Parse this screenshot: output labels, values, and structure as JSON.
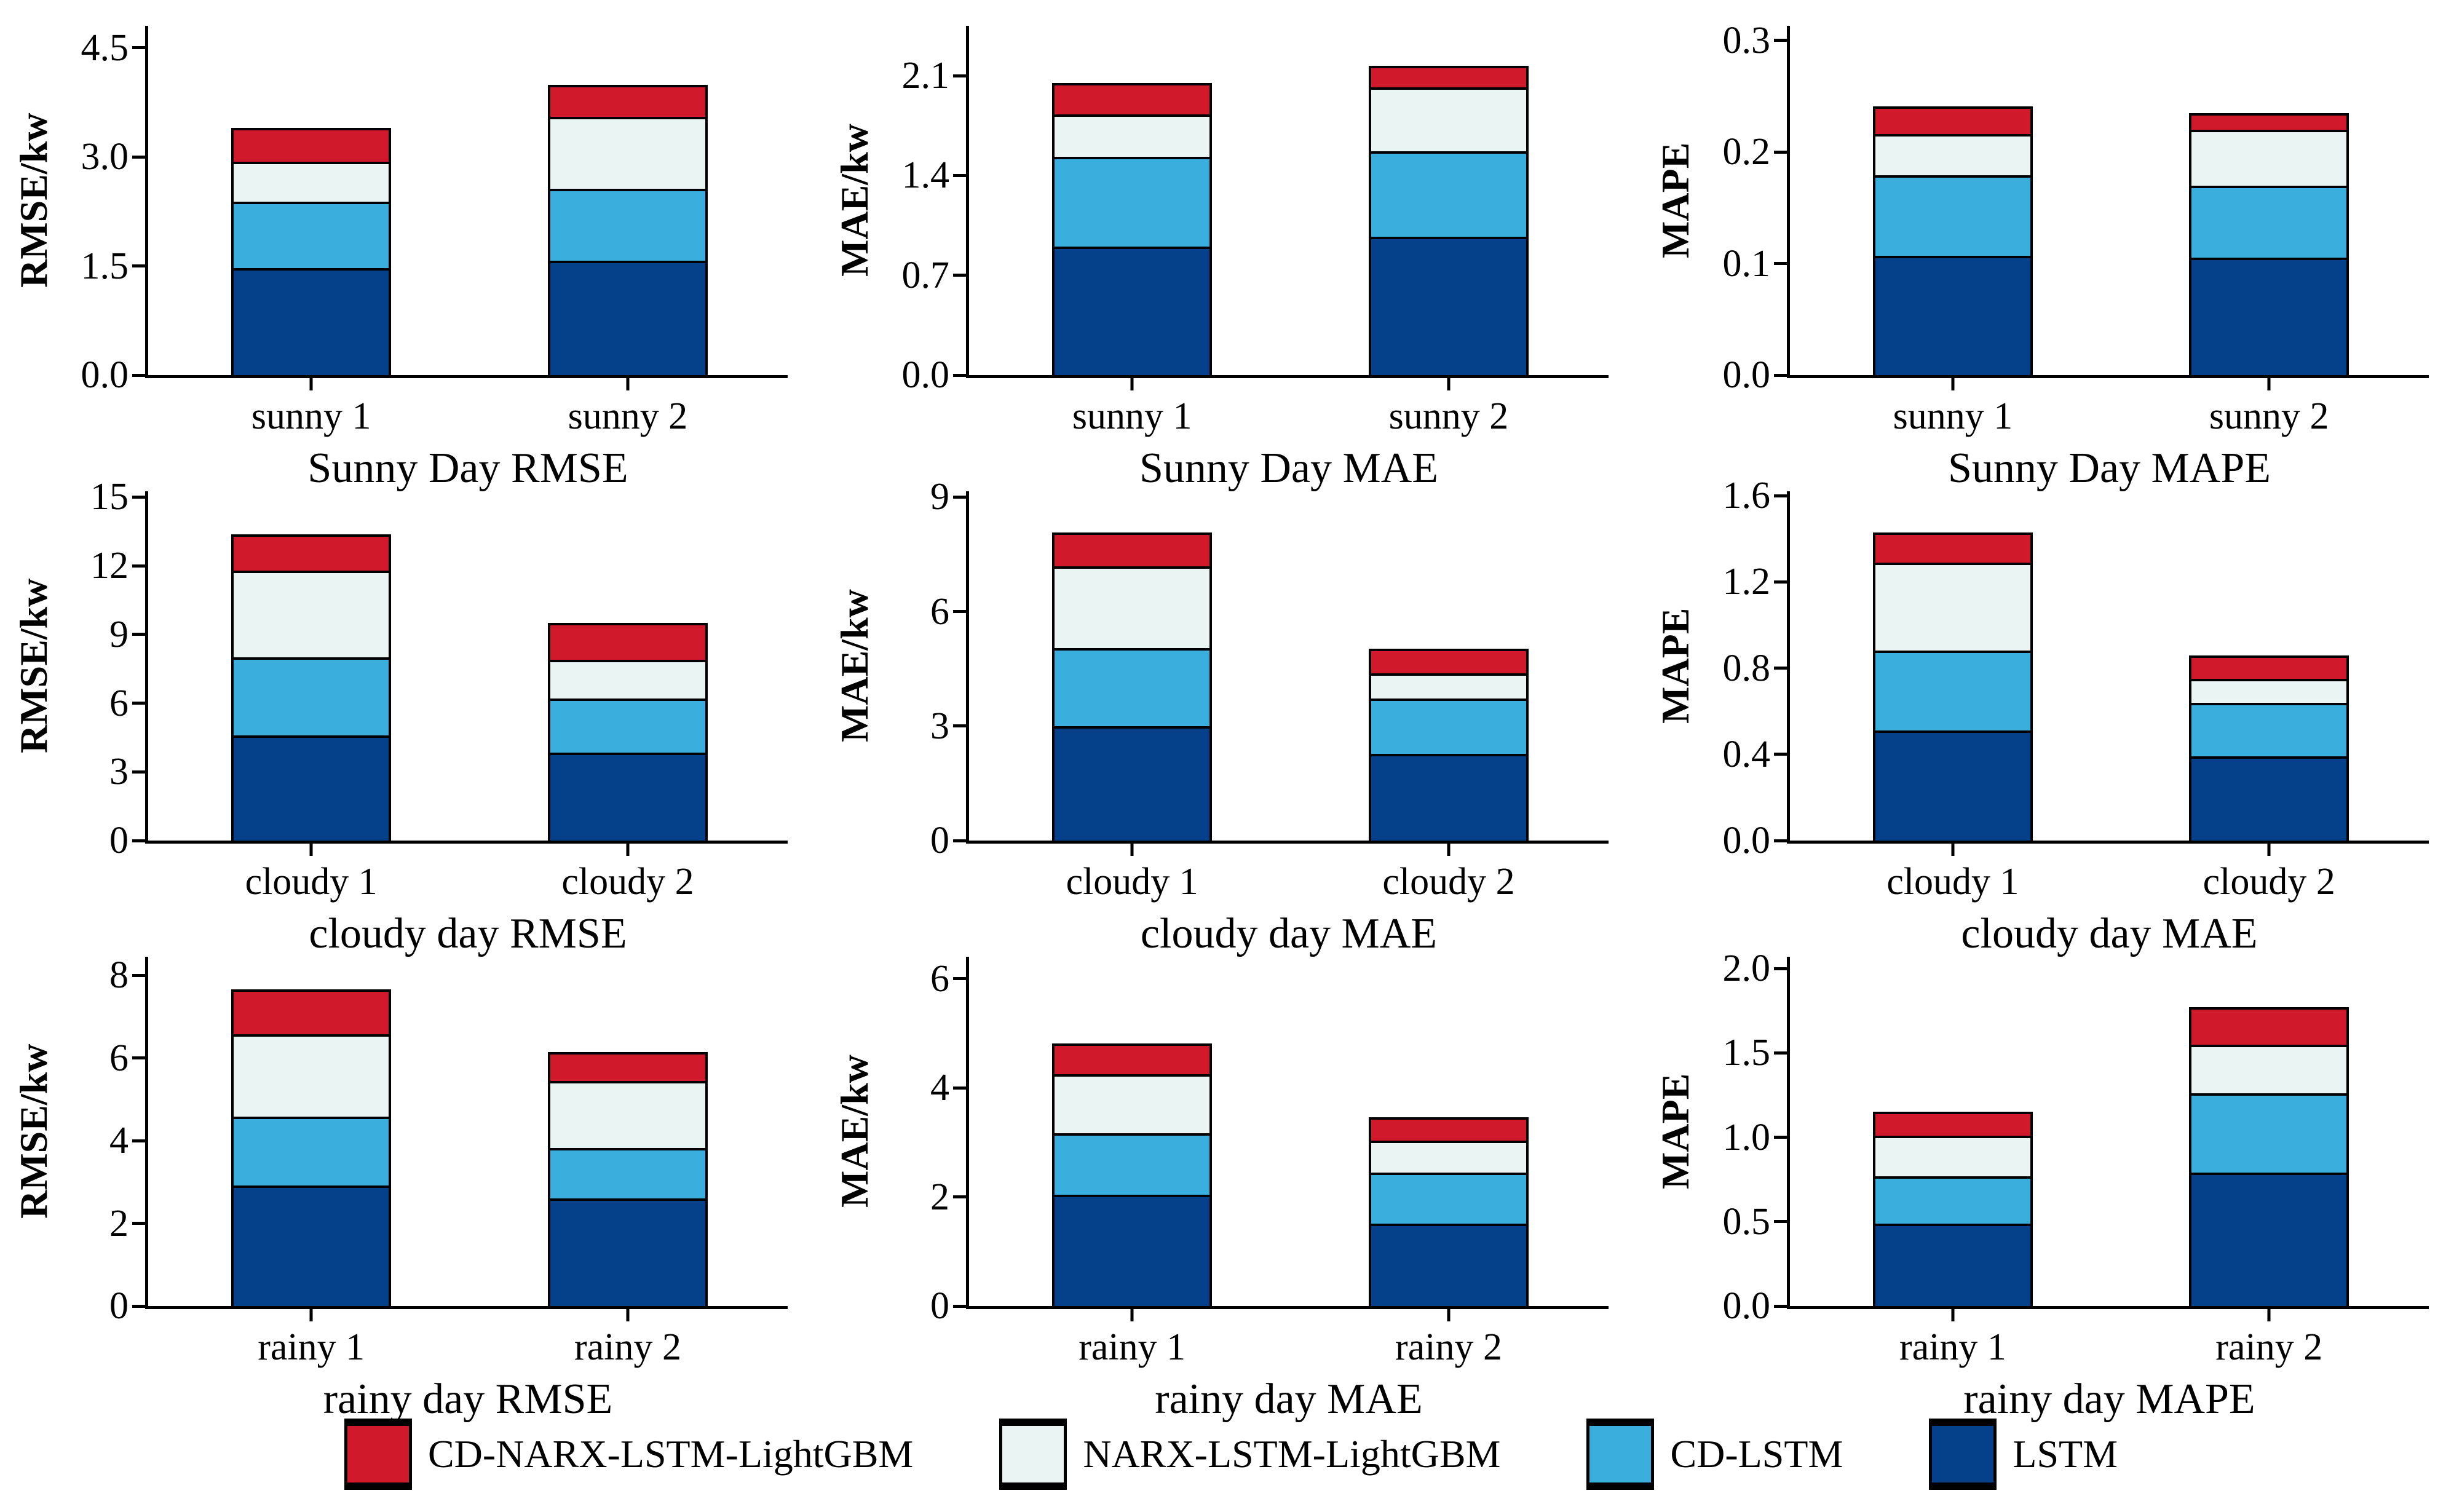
{
  "page": {
    "background": "#ffffff"
  },
  "colors": {
    "cd_narx_lstm_lightgbm": "#D01A2C",
    "narx_lstm_lightgbm": "#EAF4F3",
    "cd_lstm": "#3AAEDC",
    "lstm": "#05418A",
    "axis": "#000000"
  },
  "legend": {
    "items": [
      {
        "label": "CD-NARX-LSTM-LightGBM",
        "color": "#D01A2C",
        "swatch": "red-swatch"
      },
      {
        "label": "NARX-LSTM-LightGBM",
        "color": "#EAF4F3",
        "swatch": "pale-swatch"
      },
      {
        "label": "CD-LSTM",
        "color": "#3AAEDC",
        "swatch": "lightblue-swatch"
      },
      {
        "label": "LSTM",
        "color": "#05418A",
        "swatch": "navy-swatch"
      }
    ]
  },
  "chart_data": [
    {
      "type": "bar",
      "stacked": true,
      "title": "Sunny Day RMSE",
      "ylabel": "RMSE/kw",
      "categories": [
        "sunny 1",
        "sunny 2"
      ],
      "yticks": [
        "0.0",
        "1.5",
        "3.0",
        "4.5"
      ],
      "ytick_values": [
        0,
        1.5,
        3,
        4.5
      ],
      "ylim": [
        0,
        4.8
      ],
      "grid": false,
      "legend_position": "figure-bottom",
      "series": [
        {
          "name": "LSTM",
          "color": "#05418A",
          "values": [
            1.47,
            1.57
          ]
        },
        {
          "name": "CD-LSTM",
          "color": "#3AAEDC",
          "values": [
            0.91,
            0.99
          ]
        },
        {
          "name": "NARX-LSTM-LightGBM",
          "color": "#EAF4F3",
          "values": [
            0.55,
            0.99
          ]
        },
        {
          "name": "CD-NARX-LSTM-LightGBM",
          "color": "#D01A2C",
          "values": [
            0.47,
            0.44
          ]
        }
      ]
    },
    {
      "type": "bar",
      "stacked": true,
      "title": "Sunny Day MAE",
      "ylabel": "MAE/kw",
      "categories": [
        "sunny 1",
        "sunny 2"
      ],
      "yticks": [
        "0.0",
        "0.7",
        "1.4",
        "2.1"
      ],
      "ytick_values": [
        0,
        0.7,
        1.4,
        2.1
      ],
      "ylim": [
        0,
        2.45
      ],
      "grid": false,
      "legend_position": "figure-bottom",
      "series": [
        {
          "name": "LSTM",
          "color": "#05418A",
          "values": [
            0.9,
            0.97
          ]
        },
        {
          "name": "CD-LSTM",
          "color": "#3AAEDC",
          "values": [
            0.63,
            0.6
          ]
        },
        {
          "name": "NARX-LSTM-LightGBM",
          "color": "#EAF4F3",
          "values": [
            0.3,
            0.45
          ]
        },
        {
          "name": "CD-NARX-LSTM-LightGBM",
          "color": "#D01A2C",
          "values": [
            0.22,
            0.15
          ]
        }
      ]
    },
    {
      "type": "bar",
      "stacked": true,
      "title": "Sunny Day MAPE",
      "ylabel": "MAPE",
      "categories": [
        "sunny 1",
        "sunny 2"
      ],
      "yticks": [
        "0.0",
        "0.1",
        "0.2",
        "0.3"
      ],
      "ytick_values": [
        0,
        0.1,
        0.2,
        0.3
      ],
      "ylim": [
        0,
        0.313
      ],
      "grid": false,
      "legend_position": "figure-bottom",
      "series": [
        {
          "name": "LSTM",
          "color": "#05418A",
          "values": [
            0.107,
            0.105
          ]
        },
        {
          "name": "CD-LSTM",
          "color": "#3AAEDC",
          "values": [
            0.072,
            0.065
          ]
        },
        {
          "name": "NARX-LSTM-LightGBM",
          "color": "#EAF4F3",
          "values": [
            0.037,
            0.05
          ]
        },
        {
          "name": "CD-NARX-LSTM-LightGBM",
          "color": "#D01A2C",
          "values": [
            0.025,
            0.015
          ]
        }
      ]
    },
    {
      "type": "bar",
      "stacked": true,
      "title": "cloudy day RMSE",
      "ylabel": "RMSE/kw",
      "categories": [
        "cloudy 1",
        "cloudy 2"
      ],
      "yticks": [
        "0",
        "3",
        "6",
        "9",
        "12",
        "15"
      ],
      "ytick_values": [
        0,
        3,
        6,
        9,
        12,
        15
      ],
      "ylim": [
        0,
        15.25
      ],
      "grid": false,
      "legend_position": "figure-bottom",
      "series": [
        {
          "name": "LSTM",
          "color": "#05418A",
          "values": [
            4.6,
            3.85
          ]
        },
        {
          "name": "CD-LSTM",
          "color": "#3AAEDC",
          "values": [
            3.4,
            2.35
          ]
        },
        {
          "name": "NARX-LSTM-LightGBM",
          "color": "#EAF4F3",
          "values": [
            3.78,
            1.7
          ]
        },
        {
          "name": "CD-NARX-LSTM-LightGBM",
          "color": "#D01A2C",
          "values": [
            1.6,
            1.6
          ]
        }
      ]
    },
    {
      "type": "bar",
      "stacked": true,
      "title": "cloudy day MAE",
      "ylabel": "MAE/kw",
      "categories": [
        "cloudy 1",
        "cloudy 2"
      ],
      "yticks": [
        "0",
        "3",
        "6",
        "9"
      ],
      "ytick_values": [
        0,
        3,
        6,
        9
      ],
      "ylim": [
        0,
        9.15
      ],
      "grid": false,
      "legend_position": "figure-bottom",
      "series": [
        {
          "name": "LSTM",
          "color": "#05418A",
          "values": [
            3.0,
            2.27
          ]
        },
        {
          "name": "CD-LSTM",
          "color": "#3AAEDC",
          "values": [
            2.05,
            1.45
          ]
        },
        {
          "name": "NARX-LSTM-LightGBM",
          "color": "#EAF4F3",
          "values": [
            2.13,
            0.67
          ]
        },
        {
          "name": "CD-NARX-LSTM-LightGBM",
          "color": "#D01A2C",
          "values": [
            0.89,
            0.64
          ]
        }
      ]
    },
    {
      "type": "bar",
      "stacked": true,
      "title": "cloudy day MAE",
      "ylabel": "MAPE",
      "categories": [
        "cloudy 1",
        "cloudy 2"
      ],
      "yticks": [
        "0.0",
        "0.4",
        "0.8",
        "1.2",
        "1.6"
      ],
      "ytick_values": [
        0,
        0.4,
        0.8,
        1.2,
        1.6
      ],
      "ylim": [
        0,
        1.62
      ],
      "grid": false,
      "legend_position": "figure-bottom",
      "series": [
        {
          "name": "LSTM",
          "color": "#05418A",
          "values": [
            0.51,
            0.39
          ]
        },
        {
          "name": "CD-LSTM",
          "color": "#3AAEDC",
          "values": [
            0.37,
            0.25
          ]
        },
        {
          "name": "NARX-LSTM-LightGBM",
          "color": "#EAF4F3",
          "values": [
            0.41,
            0.11
          ]
        },
        {
          "name": "CD-NARX-LSTM-LightGBM",
          "color": "#D01A2C",
          "values": [
            0.14,
            0.11
          ]
        }
      ]
    },
    {
      "type": "bar",
      "stacked": true,
      "title": "rainy day RMSE",
      "ylabel": "RMSE/kw",
      "categories": [
        "rainy 1",
        "rainy 2"
      ],
      "yticks": [
        "0",
        "2",
        "4",
        "6",
        "8"
      ],
      "ytick_values": [
        0,
        2,
        4,
        6,
        8
      ],
      "ylim": [
        0,
        8.45
      ],
      "grid": false,
      "legend_position": "figure-bottom",
      "series": [
        {
          "name": "LSTM",
          "color": "#05418A",
          "values": [
            2.92,
            2.61
          ]
        },
        {
          "name": "CD-LSTM",
          "color": "#3AAEDC",
          "values": [
            1.66,
            1.21
          ]
        },
        {
          "name": "NARX-LSTM-LightGBM",
          "color": "#EAF4F3",
          "values": [
            2.0,
            1.63
          ]
        },
        {
          "name": "CD-NARX-LSTM-LightGBM",
          "color": "#D01A2C",
          "values": [
            1.08,
            0.7
          ]
        }
      ]
    },
    {
      "type": "bar",
      "stacked": true,
      "title": "rainy day MAE",
      "ylabel": "MAE/kw",
      "categories": [
        "rainy 1",
        "rainy 2"
      ],
      "yticks": [
        "0",
        "2",
        "4",
        "6"
      ],
      "ytick_values": [
        0,
        2,
        4,
        6
      ],
      "ylim": [
        0,
        6.4
      ],
      "grid": false,
      "legend_position": "figure-bottom",
      "series": [
        {
          "name": "LSTM",
          "color": "#05418A",
          "values": [
            2.04,
            1.51
          ]
        },
        {
          "name": "CD-LSTM",
          "color": "#3AAEDC",
          "values": [
            1.13,
            0.94
          ]
        },
        {
          "name": "NARX-LSTM-LightGBM",
          "color": "#EAF4F3",
          "values": [
            1.08,
            0.58
          ]
        },
        {
          "name": "CD-NARX-LSTM-LightGBM",
          "color": "#D01A2C",
          "values": [
            0.56,
            0.43
          ]
        }
      ]
    },
    {
      "type": "bar",
      "stacked": true,
      "title": "rainy day MAPE",
      "ylabel": "MAPE",
      "categories": [
        "rainy 1",
        "rainy 2"
      ],
      "yticks": [
        "0.0",
        "0.5",
        "1.0",
        "1.5",
        "2.0"
      ],
      "ytick_values": [
        0,
        0.5,
        1.0,
        1.5,
        2.0
      ],
      "ylim": [
        0,
        2.07
      ],
      "grid": false,
      "legend_position": "figure-bottom",
      "series": [
        {
          "name": "LSTM",
          "color": "#05418A",
          "values": [
            0.49,
            0.79
          ]
        },
        {
          "name": "CD-LSTM",
          "color": "#3AAEDC",
          "values": [
            0.28,
            0.47
          ]
        },
        {
          "name": "NARX-LSTM-LightGBM",
          "color": "#EAF4F3",
          "values": [
            0.24,
            0.29
          ]
        },
        {
          "name": "CD-NARX-LSTM-LightGBM",
          "color": "#D01A2C",
          "values": [
            0.14,
            0.22
          ]
        }
      ]
    }
  ]
}
